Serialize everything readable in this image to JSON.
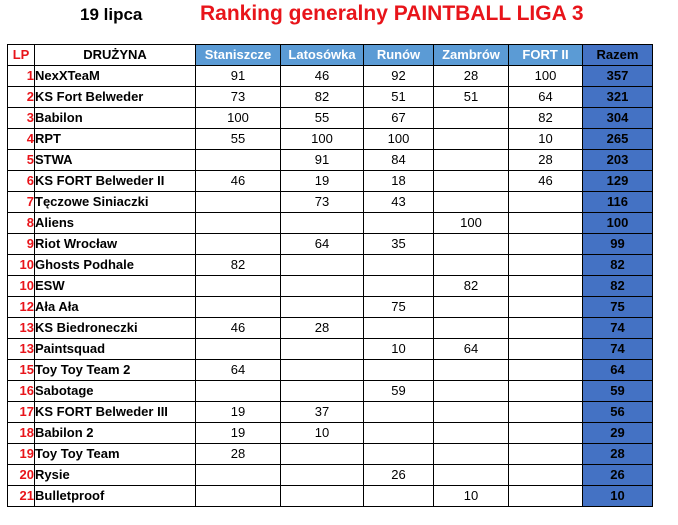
{
  "header": {
    "date": "19 lipca",
    "title": "Ranking generalny PAINTBALL LIGA 3"
  },
  "table": {
    "headers": {
      "lp": "LP",
      "team": "DRUŻYNA",
      "competitions": [
        "Staniszcze",
        "Latosówka",
        "Runów",
        "Zambrów",
        "FORT II"
      ],
      "total": "Razem"
    },
    "rows": [
      {
        "lp": "1",
        "team": "NexXTeaM",
        "scores": [
          "91",
          "46",
          "92",
          "28",
          "100"
        ],
        "total": "357"
      },
      {
        "lp": "2",
        "team": "KS Fort Belweder",
        "scores": [
          "73",
          "82",
          "51",
          "51",
          "64"
        ],
        "total": "321"
      },
      {
        "lp": "3",
        "team": "Babilon",
        "scores": [
          "100",
          "55",
          "67",
          "",
          "82"
        ],
        "total": "304"
      },
      {
        "lp": "4",
        "team": "RPT",
        "scores": [
          "55",
          "100",
          "100",
          "",
          "10"
        ],
        "total": "265"
      },
      {
        "lp": "5",
        "team": "STWA",
        "scores": [
          "",
          "91",
          "84",
          "",
          "28"
        ],
        "total": "203"
      },
      {
        "lp": "6",
        "team": "KS FORT Belweder II",
        "scores": [
          "46",
          "19",
          "18",
          "",
          "46"
        ],
        "total": "129"
      },
      {
        "lp": "7",
        "team": "Tęczowe Siniaczki",
        "scores": [
          "",
          "73",
          "43",
          "",
          ""
        ],
        "total": "116"
      },
      {
        "lp": "8",
        "team": "Aliens",
        "scores": [
          "",
          "",
          "",
          "100",
          ""
        ],
        "total": "100"
      },
      {
        "lp": "9",
        "team": "Riot Wrocław",
        "scores": [
          "",
          "64",
          "35",
          "",
          ""
        ],
        "total": "99"
      },
      {
        "lp": "10",
        "team": "Ghosts Podhale",
        "scores": [
          "82",
          "",
          "",
          "",
          ""
        ],
        "total": "82"
      },
      {
        "lp": "10",
        "team": "ESW",
        "scores": [
          "",
          "",
          "",
          "82",
          ""
        ],
        "total": "82"
      },
      {
        "lp": "12",
        "team": "Ała Ała",
        "scores": [
          "",
          "",
          "75",
          "",
          ""
        ],
        "total": "75"
      },
      {
        "lp": "13",
        "team": "KS Biedroneczki",
        "scores": [
          "46",
          "28",
          "",
          "",
          ""
        ],
        "total": "74"
      },
      {
        "lp": "13",
        "team": "Paintsquad",
        "scores": [
          "",
          "",
          "10",
          "64",
          ""
        ],
        "total": "74"
      },
      {
        "lp": "15",
        "team": "Toy Toy Team 2",
        "scores": [
          "64",
          "",
          "",
          "",
          ""
        ],
        "total": "64"
      },
      {
        "lp": "16",
        "team": "Sabotage",
        "scores": [
          "",
          "",
          "59",
          "",
          ""
        ],
        "total": "59"
      },
      {
        "lp": "17",
        "team": "KS FORT Belweder III",
        "scores": [
          "19",
          "37",
          "",
          "",
          ""
        ],
        "total": "56"
      },
      {
        "lp": "18",
        "team": "Babilon 2",
        "scores": [
          "19",
          "10",
          "",
          "",
          ""
        ],
        "total": "29"
      },
      {
        "lp": "19",
        "team": "Toy Toy Team",
        "scores": [
          "28",
          "",
          "",
          "",
          ""
        ],
        "total": "28"
      },
      {
        "lp": "20",
        "team": "Rysie",
        "scores": [
          "",
          "",
          "26",
          "",
          ""
        ],
        "total": "26"
      },
      {
        "lp": "21",
        "team": "Bulletproof",
        "scores": [
          "",
          "",
          "",
          "10",
          ""
        ],
        "total": "10"
      }
    ]
  }
}
